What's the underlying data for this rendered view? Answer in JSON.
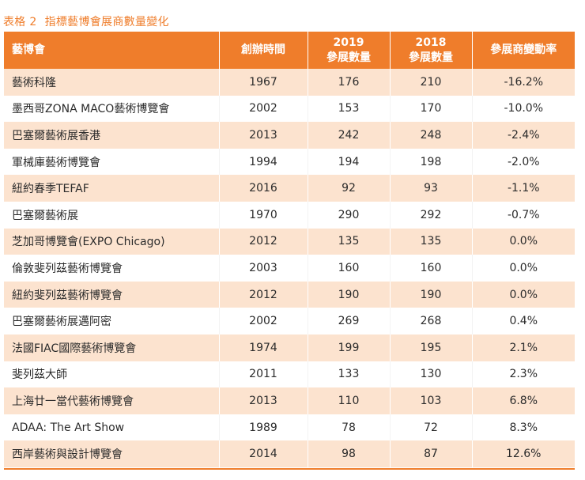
{
  "caption": {
    "number": "表格 2",
    "title": "指標藝博會展商數量變化"
  },
  "columns": {
    "name": "藝博會",
    "year": "創辦時間",
    "y2019_line1": "2019",
    "y2019_line2": "參展數量",
    "y2018_line1": "2018",
    "y2018_line2": "參展數量",
    "change": "參展商變動率"
  },
  "rows": [
    {
      "name": "藝術科隆",
      "year": "1967",
      "y2019": "176",
      "y2018": "210",
      "change": "-16.2%"
    },
    {
      "name": "墨西哥ZONA MACO藝術博覽會",
      "year": "2002",
      "y2019": "153",
      "y2018": "170",
      "change": "-10.0%"
    },
    {
      "name": "巴塞爾藝術展香港",
      "year": "2013",
      "y2019": "242",
      "y2018": "248",
      "change": "-2.4%"
    },
    {
      "name": "軍械庫藝術博覽會",
      "year": "1994",
      "y2019": "194",
      "y2018": "198",
      "change": "-2.0%"
    },
    {
      "name": "紐約春季TEFAF",
      "year": "2016",
      "y2019": "92",
      "y2018": "93",
      "change": "-1.1%"
    },
    {
      "name": "巴塞爾藝術展",
      "year": "1970",
      "y2019": "290",
      "y2018": "292",
      "change": "-0.7%"
    },
    {
      "name": "芝加哥博覽會(EXPO Chicago)",
      "year": "2012",
      "y2019": "135",
      "y2018": "135",
      "change": "0.0%"
    },
    {
      "name": "倫敦斐列茲藝術博覽會",
      "year": "2003",
      "y2019": "160",
      "y2018": "160",
      "change": "0.0%"
    },
    {
      "name": "紐約斐列茲藝術博覽會",
      "year": "2012",
      "y2019": "190",
      "y2018": "190",
      "change": "0.0%"
    },
    {
      "name": "巴塞爾藝術展邁阿密",
      "year": "2002",
      "y2019": "269",
      "y2018": "268",
      "change": "0.4%"
    },
    {
      "name": "法國FIAC國際藝術博覽會",
      "year": "1974",
      "y2019": "199",
      "y2018": "195",
      "change": "2.1%"
    },
    {
      "name": "斐列茲大師",
      "year": "2011",
      "y2019": "133",
      "y2018": "130",
      "change": "2.3%"
    },
    {
      "name": "上海廿一當代藝術博覽會",
      "year": "2013",
      "y2019": "110",
      "y2018": "103",
      "change": "6.8%"
    },
    {
      "name": "ADAA: The Art Show",
      "year": "1989",
      "y2019": "78",
      "y2018": "72",
      "change": "8.3%"
    },
    {
      "name": "西岸藝術與設計博覽會",
      "year": "2014",
      "y2019": "98",
      "y2018": "87",
      "change": "12.6%"
    }
  ],
  "colors": {
    "accent": "#ef7d2b",
    "row_tint": "#fce3cf"
  }
}
